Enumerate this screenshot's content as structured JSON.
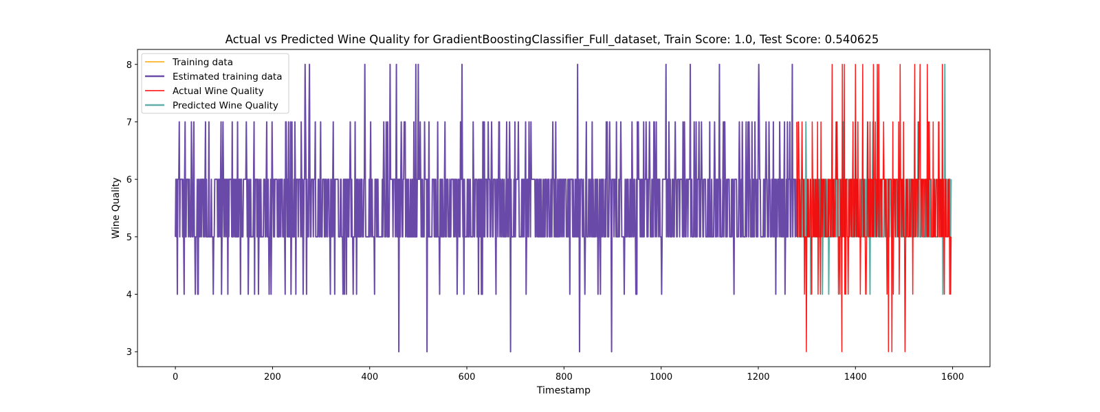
{
  "chart_data": {
    "type": "line",
    "title": "Actual vs Predicted Wine Quality for GradientBoostingClassifier_Full_dataset, Train Score: 1.0, Test Score: 0.540625",
    "xlabel": "Timestamp",
    "ylabel": "Wine Quality",
    "xlim": [
      -78,
      1677
    ],
    "ylim": [
      2.74,
      8.26
    ],
    "x_ticks": [
      0,
      200,
      400,
      600,
      800,
      1000,
      1200,
      1400,
      1600
    ],
    "y_ticks": [
      3,
      4,
      5,
      6,
      7,
      8
    ],
    "grid": false,
    "legend_position": "top-left",
    "train_range": [
      0,
      1279
    ],
    "test_range": [
      1279,
      1598
    ],
    "series": [
      {
        "name": "Training data",
        "color": "#ffa500",
        "description": "actual quality, timestamps 0–1278 (hidden beneath estimated line)",
        "sample_x": [
          0,
          5,
          8,
          12,
          18,
          20,
          25,
          38,
          41,
          44,
          46,
          62,
          78,
          95,
          128,
          150,
          163,
          171,
          199,
          201,
          226,
          233,
          240,
          263,
          267,
          270,
          276,
          288,
          390,
          410,
          442,
          455,
          460,
          495,
          500,
          518,
          540,
          580,
          590,
          630,
          690,
          722,
          812,
          828,
          832,
          843,
          875,
          898,
          924,
          940,
          1010,
          1060,
          1080,
          1120,
          1150,
          1201,
          1236,
          1255,
          1270,
          1278
        ],
        "sample_y": [
          5,
          6,
          7,
          6,
          4,
          7,
          6,
          7,
          4,
          5,
          4,
          7,
          4,
          4,
          7,
          4,
          4,
          4,
          7,
          6,
          4,
          7,
          7,
          4,
          8,
          4,
          8,
          7,
          8,
          4,
          8,
          8,
          3,
          8,
          8,
          3,
          7,
          4,
          8,
          4,
          3,
          4,
          4,
          8,
          3,
          4,
          4,
          3,
          4,
          7,
          8,
          8,
          6,
          8,
          4,
          8,
          4,
          4,
          8,
          5
        ]
      },
      {
        "name": "Estimated training data",
        "color": "#6a4aa8",
        "description": "predicted on training set, overlays Training data",
        "sample_x": [
          0,
          5,
          8,
          12,
          18,
          20,
          25,
          38,
          41,
          44,
          46,
          62,
          78,
          95,
          128,
          150,
          163,
          171,
          199,
          201,
          226,
          233,
          240,
          263,
          267,
          270,
          276,
          288,
          390,
          410,
          442,
          455,
          460,
          495,
          500,
          518,
          540,
          580,
          590,
          630,
          690,
          722,
          812,
          828,
          832,
          843,
          875,
          898,
          924,
          940,
          1010,
          1060,
          1080,
          1120,
          1150,
          1201,
          1236,
          1255,
          1270,
          1278
        ],
        "sample_y": [
          5,
          6,
          7,
          6,
          4,
          7,
          6,
          7,
          4,
          5,
          4,
          7,
          4,
          4,
          7,
          4,
          4,
          4,
          7,
          6,
          4,
          7,
          7,
          4,
          8,
          4,
          8,
          7,
          8,
          4,
          8,
          8,
          3,
          8,
          8,
          3,
          7,
          4,
          8,
          4,
          3,
          4,
          4,
          8,
          3,
          4,
          4,
          3,
          4,
          7,
          8,
          8,
          6,
          8,
          4,
          8,
          4,
          4,
          8,
          5
        ]
      },
      {
        "name": "Actual Wine Quality",
        "color": "#ff0000",
        "description": "test set actual, timestamps 1279–1598",
        "sample_x": [
          1279,
          1281,
          1295,
          1299,
          1310,
          1322,
          1330,
          1365,
          1372,
          1375,
          1395,
          1400,
          1405,
          1422,
          1430,
          1445,
          1448,
          1465,
          1468,
          1475,
          1478,
          1490,
          1502,
          1518,
          1530,
          1535,
          1548,
          1560,
          1572,
          1583,
          1598
        ],
        "sample_y": [
          7,
          5,
          4,
          3,
          4,
          7,
          5,
          4,
          3,
          6,
          7,
          8,
          7,
          4,
          7,
          8,
          8,
          4,
          3,
          3,
          4,
          4,
          3,
          4,
          7,
          5,
          8,
          7,
          7,
          4,
          6
        ]
      },
      {
        "name": "Predicted Wine Quality",
        "color": "#5faea8",
        "description": "test set predictions",
        "sample_x": [
          1279,
          1308,
          1332,
          1345,
          1375,
          1380,
          1400,
          1425,
          1430,
          1436,
          1480,
          1530,
          1580,
          1584,
          1598
        ],
        "sample_y": [
          5,
          4,
          4,
          4,
          7,
          6,
          7,
          7,
          4,
          7,
          6,
          6,
          4,
          8,
          6
        ]
      }
    ]
  }
}
